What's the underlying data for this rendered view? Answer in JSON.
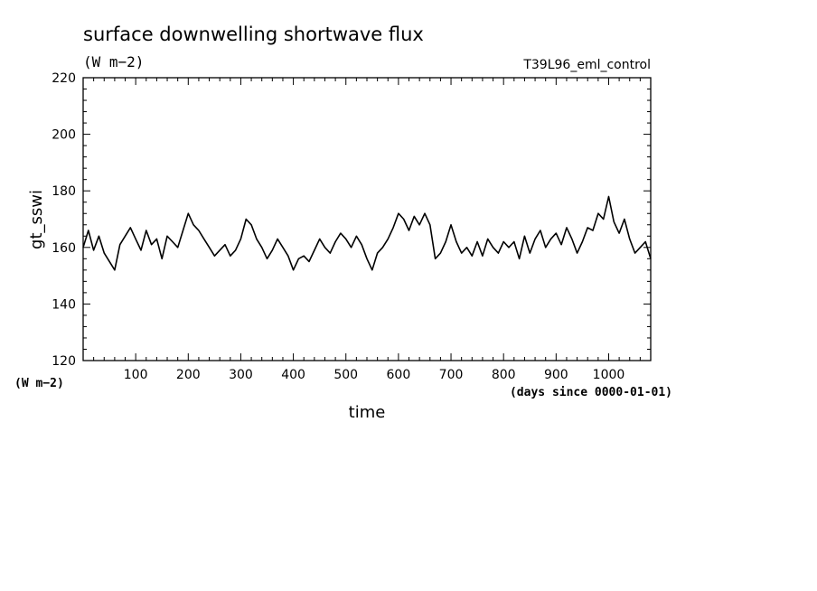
{
  "chart_data": {
    "type": "line",
    "title": "surface downwelling shortwave flux",
    "subtitle": "(W m−2)",
    "run_label": "T39L96_eml_control",
    "xlabel": "time",
    "x_unit_label": "(days since 0000-01-01)",
    "ylabel": "gt_sswi",
    "y_unit_label": "(W m−2)",
    "xlim": [
      0,
      1080
    ],
    "ylim": [
      120,
      220
    ],
    "xticks": [
      100,
      200,
      300,
      400,
      500,
      600,
      700,
      800,
      900,
      1000
    ],
    "yticks": [
      120,
      140,
      160,
      180,
      200,
      220
    ],
    "grid": false,
    "line_color": "#000000",
    "series": [
      {
        "x": [
          0,
          10,
          20,
          30,
          40,
          50,
          60,
          70,
          80,
          90,
          100,
          110,
          120,
          130,
          140,
          150,
          160,
          170,
          180,
          190,
          200,
          210,
          220,
          230,
          240,
          250,
          260,
          270,
          280,
          290,
          300,
          310,
          320,
          330,
          340,
          350,
          360,
          370,
          380,
          390,
          400,
          410,
          420,
          430,
          440,
          450,
          460,
          470,
          480,
          490,
          500,
          510,
          520,
          530,
          540,
          550,
          560,
          570,
          580,
          590,
          600,
          610,
          620,
          630,
          640,
          650,
          660,
          670,
          680,
          690,
          700,
          710,
          720,
          730,
          740,
          750,
          760,
          770,
          780,
          790,
          800,
          810,
          820,
          830,
          840,
          850,
          860,
          870,
          880,
          890,
          900,
          910,
          920,
          930,
          940,
          950,
          960,
          970,
          980,
          990,
          1000,
          1010,
          1020,
          1030,
          1040,
          1050,
          1060,
          1070,
          1080
        ],
        "values": [
          160,
          166,
          159,
          164,
          158,
          155,
          152,
          161,
          164,
          167,
          163,
          159,
          166,
          161,
          163,
          156,
          164,
          162,
          160,
          166,
          172,
          168,
          166,
          163,
          160,
          157,
          159,
          161,
          157,
          159,
          163,
          170,
          168,
          163,
          160,
          156,
          159,
          163,
          160,
          157,
          152,
          156,
          157,
          155,
          159,
          163,
          160,
          158,
          162,
          165,
          163,
          160,
          164,
          161,
          156,
          152,
          158,
          160,
          163,
          167,
          172,
          170,
          166,
          171,
          168,
          172,
          168,
          156,
          158,
          162,
          168,
          162,
          158,
          160,
          157,
          162,
          157,
          163,
          160,
          158,
          162,
          160,
          162,
          156,
          164,
          158,
          163,
          166,
          160,
          163,
          165,
          161,
          167,
          163,
          158,
          162,
          167,
          166,
          172,
          170,
          178,
          169,
          165,
          170,
          163,
          158,
          160,
          162,
          156
        ]
      }
    ]
  }
}
